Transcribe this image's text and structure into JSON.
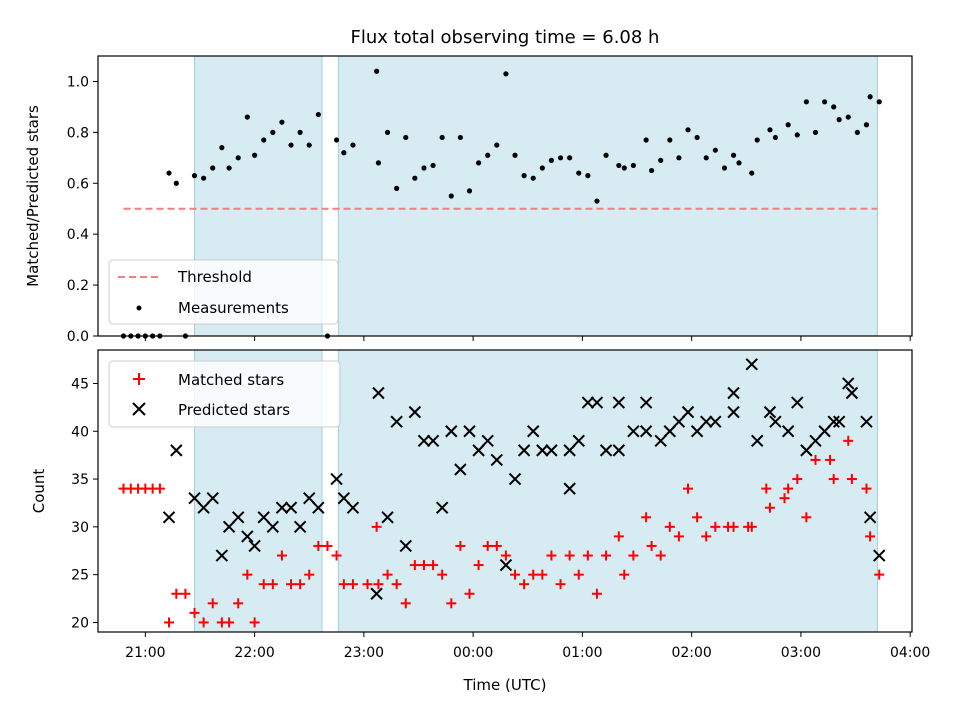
{
  "chart_data": [
    {
      "type": "scatter",
      "title": "Flux total observing time = 6.08 h",
      "xlabel": "",
      "ylabel": "Matched/Predicted stars",
      "xlim": [
        "20:34",
        "04:01"
      ],
      "ylim": [
        0,
        1.1
      ],
      "yticks": [
        "0.0",
        "0.2",
        "0.4",
        "0.6",
        "0.8",
        "1.0"
      ],
      "observing_windows": [
        {
          "start": "21:27",
          "end": "22:37"
        },
        {
          "start": "22:46",
          "end": "03:42"
        }
      ],
      "threshold": {
        "name": "Threshold",
        "value": 0.5,
        "x_start": "20:48",
        "x_end": "03:42",
        "color": "#f07f7f"
      },
      "series": [
        {
          "name": "Measurements",
          "color": "#000000",
          "points": [
            [
              "20:48",
              0
            ],
            [
              "20:52",
              0
            ],
            [
              "20:56",
              0
            ],
            [
              "21:00",
              0
            ],
            [
              "21:04",
              0
            ],
            [
              "21:08",
              0
            ],
            [
              "21:13",
              0.64
            ],
            [
              "21:17",
              0.6
            ],
            [
              "21:22",
              0
            ],
            [
              "21:27",
              0.63
            ],
            [
              "21:32",
              0.62
            ],
            [
              "21:37",
              0.66
            ],
            [
              "21:42",
              0.74
            ],
            [
              "21:46",
              0.66
            ],
            [
              "21:51",
              0.7
            ],
            [
              "21:56",
              0.86
            ],
            [
              "22:00",
              0.71
            ],
            [
              "22:05",
              0.77
            ],
            [
              "22:10",
              0.8
            ],
            [
              "22:15",
              0.84
            ],
            [
              "22:20",
              0.75
            ],
            [
              "22:25",
              0.8
            ],
            [
              "22:30",
              0.75
            ],
            [
              "22:35",
              0.87
            ],
            [
              "22:40",
              0
            ],
            [
              "22:45",
              0.77
            ],
            [
              "22:49",
              0.72
            ],
            [
              "22:54",
              0.75
            ],
            [
              "23:07",
              1.04
            ],
            [
              "23:08",
              0.68
            ],
            [
              "23:13",
              0.8
            ],
            [
              "23:18",
              0.58
            ],
            [
              "23:23",
              0.78
            ],
            [
              "23:28",
              0.62
            ],
            [
              "23:33",
              0.66
            ],
            [
              "23:38",
              0.67
            ],
            [
              "23:43",
              0.78
            ],
            [
              "23:48",
              0.55
            ],
            [
              "23:53",
              0.78
            ],
            [
              "23:58",
              0.57
            ],
            [
              "00:03",
              0.68
            ],
            [
              "00:08",
              0.71
            ],
            [
              "00:13",
              0.75
            ],
            [
              "00:18",
              1.03
            ],
            [
              "00:23",
              0.71
            ],
            [
              "00:28",
              0.63
            ],
            [
              "00:33",
              0.62
            ],
            [
              "00:38",
              0.66
            ],
            [
              "00:43",
              0.69
            ],
            [
              "00:48",
              0.7
            ],
            [
              "00:53",
              0.7
            ],
            [
              "00:58",
              0.64
            ],
            [
              "01:03",
              0.63
            ],
            [
              "01:08",
              0.53
            ],
            [
              "01:13",
              0.71
            ],
            [
              "01:20",
              0.67
            ],
            [
              "01:23",
              0.66
            ],
            [
              "01:28",
              0.67
            ],
            [
              "01:35",
              0.77
            ],
            [
              "01:38",
              0.65
            ],
            [
              "01:43",
              0.69
            ],
            [
              "01:48",
              0.77
            ],
            [
              "01:53",
              0.7
            ],
            [
              "01:58",
              0.81
            ],
            [
              "02:03",
              0.78
            ],
            [
              "02:08",
              0.7
            ],
            [
              "02:13",
              0.73
            ],
            [
              "02:18",
              0.66
            ],
            [
              "02:23",
              0.71
            ],
            [
              "02:26",
              0.68
            ],
            [
              "02:33",
              0.64
            ],
            [
              "02:36",
              0.77
            ],
            [
              "02:43",
              0.81
            ],
            [
              "02:46",
              0.78
            ],
            [
              "02:53",
              0.83
            ],
            [
              "02:58",
              0.79
            ],
            [
              "03:03",
              0.92
            ],
            [
              "03:08",
              0.8
            ],
            [
              "03:13",
              0.92
            ],
            [
              "03:18",
              0.9
            ],
            [
              "03:21",
              0.85
            ],
            [
              "03:26",
              0.86
            ],
            [
              "03:31",
              0.8
            ],
            [
              "03:36",
              0.83
            ],
            [
              "03:38",
              0.94
            ],
            [
              "03:43",
              0.92
            ]
          ]
        }
      ],
      "legend": {
        "position": "lower-left",
        "entries": [
          "Threshold",
          "Measurements"
        ]
      },
      "grid": false
    },
    {
      "type": "scatter",
      "title": "",
      "xlabel": "Time (UTC)",
      "ylabel": "Count",
      "xlim": [
        "20:34",
        "04:01"
      ],
      "ylim": [
        19,
        48.5
      ],
      "yticks": [
        "20",
        "25",
        "30",
        "35",
        "40",
        "45"
      ],
      "xticks": [
        "21:00",
        "22:00",
        "23:00",
        "00:00",
        "01:00",
        "02:00",
        "03:00",
        "04:00"
      ],
      "series": [
        {
          "name": "Matched stars",
          "marker": "plus",
          "color": "#ff0000",
          "points": [
            [
              "20:48",
              34
            ],
            [
              "20:52",
              34
            ],
            [
              "20:56",
              34
            ],
            [
              "21:00",
              34
            ],
            [
              "21:04",
              34
            ],
            [
              "21:08",
              34
            ],
            [
              "21:13",
              20
            ],
            [
              "21:17",
              23
            ],
            [
              "21:22",
              23
            ],
            [
              "21:27",
              21
            ],
            [
              "21:32",
              20
            ],
            [
              "21:37",
              22
            ],
            [
              "21:42",
              20
            ],
            [
              "21:46",
              20
            ],
            [
              "21:51",
              22
            ],
            [
              "21:56",
              25
            ],
            [
              "22:00",
              20
            ],
            [
              "22:05",
              24
            ],
            [
              "22:10",
              24
            ],
            [
              "22:15",
              27
            ],
            [
              "22:20",
              24
            ],
            [
              "22:25",
              24
            ],
            [
              "22:30",
              25
            ],
            [
              "22:35",
              28
            ],
            [
              "22:40",
              28
            ],
            [
              "22:45",
              27
            ],
            [
              "22:49",
              24
            ],
            [
              "22:54",
              24
            ],
            [
              "23:02",
              24
            ],
            [
              "23:07",
              30
            ],
            [
              "23:08",
              24
            ],
            [
              "23:13",
              25
            ],
            [
              "23:18",
              24
            ],
            [
              "23:23",
              22
            ],
            [
              "23:28",
              26
            ],
            [
              "23:33",
              26
            ],
            [
              "23:38",
              26
            ],
            [
              "23:43",
              25
            ],
            [
              "23:48",
              22
            ],
            [
              "23:53",
              28
            ],
            [
              "23:58",
              23
            ],
            [
              "00:03",
              26
            ],
            [
              "00:08",
              28
            ],
            [
              "00:13",
              28
            ],
            [
              "00:18",
              27
            ],
            [
              "00:23",
              25
            ],
            [
              "00:28",
              24
            ],
            [
              "00:33",
              25
            ],
            [
              "00:38",
              25
            ],
            [
              "00:43",
              27
            ],
            [
              "00:48",
              24
            ],
            [
              "00:53",
              27
            ],
            [
              "00:58",
              25
            ],
            [
              "01:03",
              27
            ],
            [
              "01:08",
              23
            ],
            [
              "01:13",
              27
            ],
            [
              "01:20",
              29
            ],
            [
              "01:23",
              25
            ],
            [
              "01:28",
              27
            ],
            [
              "01:35",
              31
            ],
            [
              "01:38",
              28
            ],
            [
              "01:43",
              27
            ],
            [
              "01:48",
              30
            ],
            [
              "01:53",
              29
            ],
            [
              "01:58",
              34
            ],
            [
              "02:03",
              31
            ],
            [
              "02:08",
              29
            ],
            [
              "02:13",
              30
            ],
            [
              "02:20",
              30
            ],
            [
              "02:23",
              30
            ],
            [
              "02:31",
              30
            ],
            [
              "02:33",
              30
            ],
            [
              "02:41",
              34
            ],
            [
              "02:43",
              32
            ],
            [
              "02:51",
              33
            ],
            [
              "02:53",
              34
            ],
            [
              "02:58",
              35
            ],
            [
              "03:03",
              31
            ],
            [
              "03:08",
              37
            ],
            [
              "03:16",
              37
            ],
            [
              "03:18",
              35
            ],
            [
              "03:26",
              39
            ],
            [
              "03:28",
              35
            ],
            [
              "03:36",
              34
            ],
            [
              "03:38",
              29
            ],
            [
              "03:43",
              25
            ]
          ]
        },
        {
          "name": "Predicted stars",
          "marker": "x",
          "color": "#000000",
          "points": [
            [
              "21:13",
              31
            ],
            [
              "21:17",
              38
            ],
            [
              "21:27",
              33
            ],
            [
              "21:32",
              32
            ],
            [
              "21:37",
              33
            ],
            [
              "21:42",
              27
            ],
            [
              "21:46",
              30
            ],
            [
              "21:51",
              31
            ],
            [
              "21:56",
              29
            ],
            [
              "22:00",
              28
            ],
            [
              "22:05",
              31
            ],
            [
              "22:10",
              30
            ],
            [
              "22:15",
              32
            ],
            [
              "22:20",
              32
            ],
            [
              "22:25",
              30
            ],
            [
              "22:30",
              33
            ],
            [
              "22:35",
              32
            ],
            [
              "22:45",
              35
            ],
            [
              "22:49",
              33
            ],
            [
              "22:54",
              32
            ],
            [
              "23:07",
              23
            ],
            [
              "23:08",
              44
            ],
            [
              "23:13",
              31
            ],
            [
              "23:18",
              41
            ],
            [
              "23:23",
              28
            ],
            [
              "23:28",
              42
            ],
            [
              "23:33",
              39
            ],
            [
              "23:38",
              39
            ],
            [
              "23:43",
              32
            ],
            [
              "23:48",
              40
            ],
            [
              "23:53",
              36
            ],
            [
              "23:58",
              40
            ],
            [
              "00:03",
              38
            ],
            [
              "00:08",
              39
            ],
            [
              "00:13",
              37
            ],
            [
              "00:18",
              26
            ],
            [
              "00:23",
              35
            ],
            [
              "00:28",
              38
            ],
            [
              "00:33",
              40
            ],
            [
              "00:38",
              38
            ],
            [
              "00:43",
              38
            ],
            [
              "00:53",
              38
            ],
            [
              "00:53",
              34
            ],
            [
              "00:58",
              39
            ],
            [
              "01:03",
              43
            ],
            [
              "01:08",
              43
            ],
            [
              "01:13",
              38
            ],
            [
              "01:20",
              43
            ],
            [
              "01:20",
              38
            ],
            [
              "01:28",
              40
            ],
            [
              "01:35",
              43
            ],
            [
              "01:35",
              40
            ],
            [
              "01:43",
              39
            ],
            [
              "01:48",
              40
            ],
            [
              "01:53",
              41
            ],
            [
              "01:58",
              42
            ],
            [
              "02:03",
              40
            ],
            [
              "02:08",
              41
            ],
            [
              "02:13",
              41
            ],
            [
              "02:23",
              44
            ],
            [
              "02:23",
              42
            ],
            [
              "02:33",
              47
            ],
            [
              "02:36",
              39
            ],
            [
              "02:43",
              42
            ],
            [
              "02:46",
              41
            ],
            [
              "02:53",
              40
            ],
            [
              "02:58",
              43
            ],
            [
              "03:03",
              38
            ],
            [
              "03:08",
              39
            ],
            [
              "03:13",
              40
            ],
            [
              "03:18",
              41
            ],
            [
              "03:21",
              41
            ],
            [
              "03:26",
              45
            ],
            [
              "03:28",
              44
            ],
            [
              "03:36",
              41
            ],
            [
              "03:38",
              31
            ],
            [
              "03:43",
              27
            ]
          ]
        }
      ],
      "legend": {
        "position": "top-left",
        "entries": [
          "Matched stars",
          "Predicted stars"
        ]
      },
      "grid": false
    }
  ]
}
